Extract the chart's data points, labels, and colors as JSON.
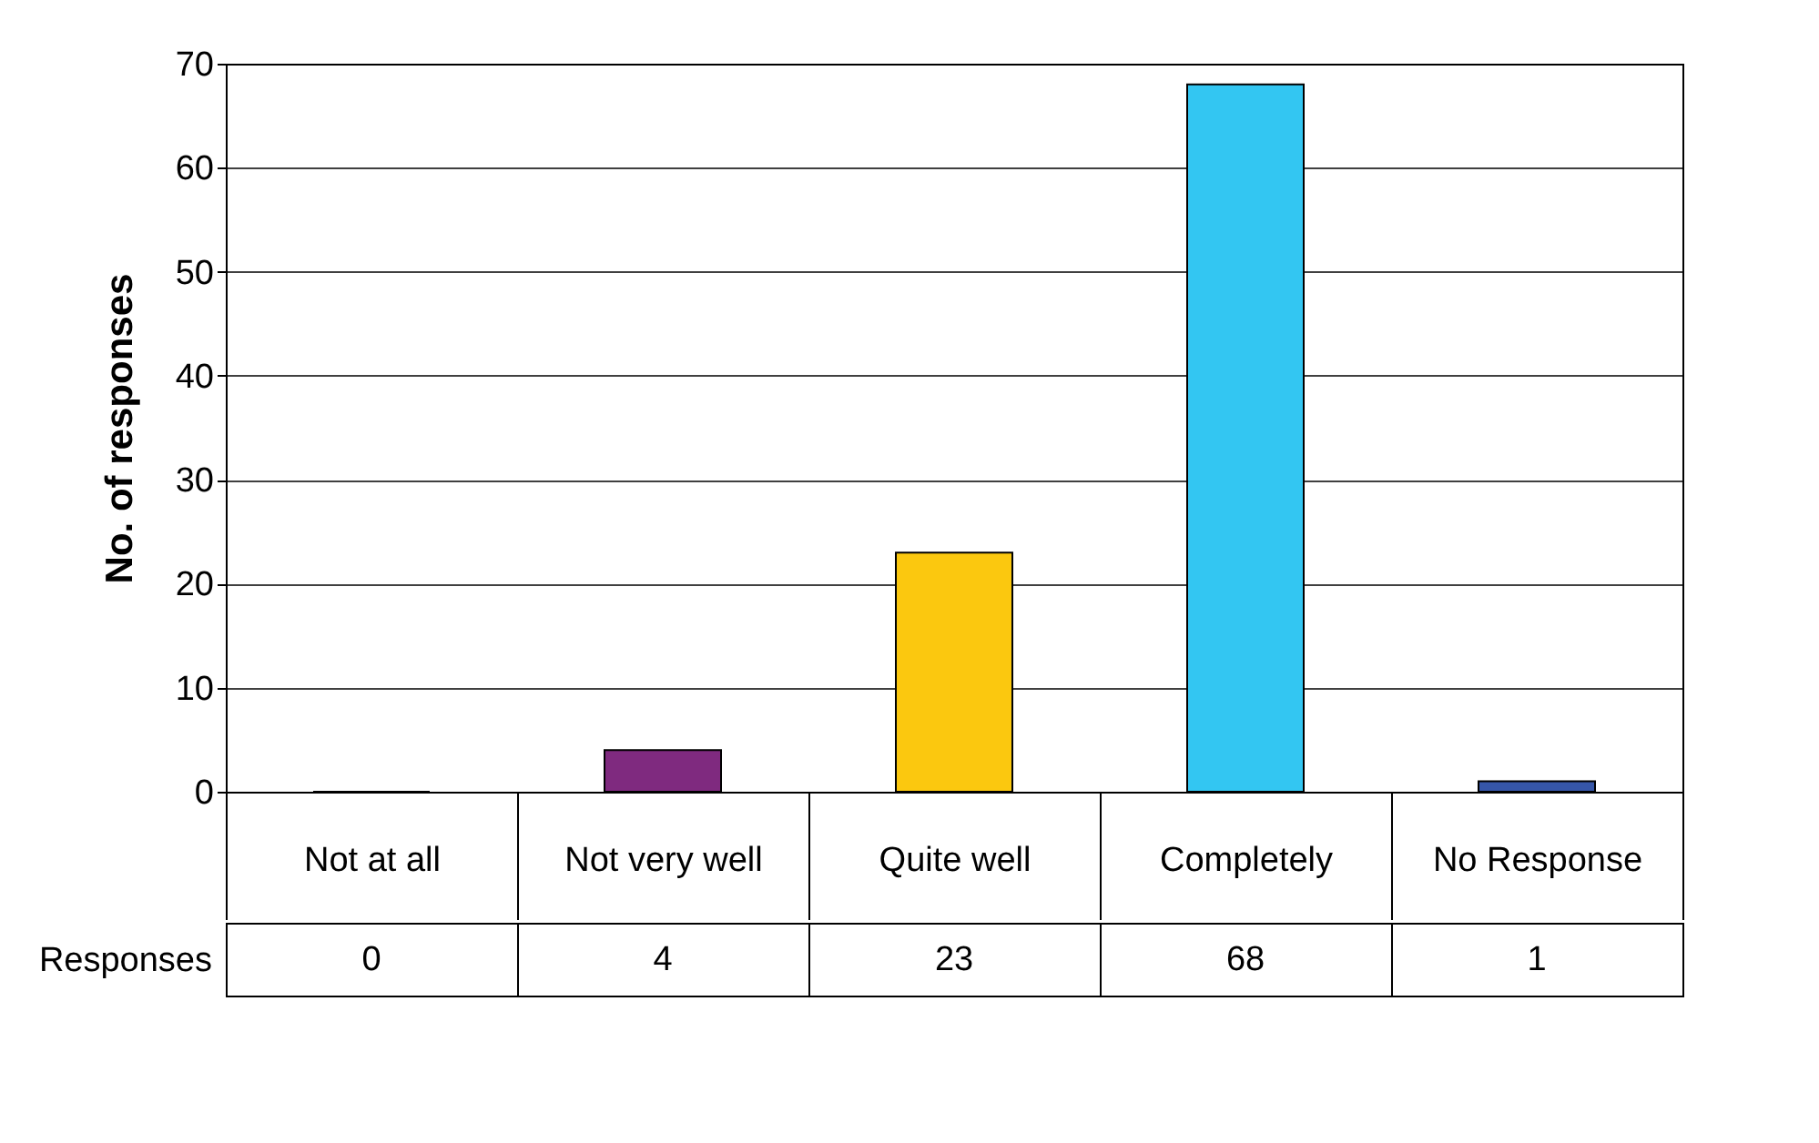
{
  "chart_data": {
    "type": "bar",
    "ylabel": "No. of responses",
    "categories": [
      "Not at all",
      "Not very well",
      "Quite well",
      "Completely",
      "No Response"
    ],
    "series": [
      {
        "name": "Responses",
        "values": [
          0,
          4,
          23,
          68,
          1
        ]
      }
    ],
    "colors": [
      "#7f7f7f",
      "#7f2a7f",
      "#fbc80f",
      "#33c6f2",
      "#3656a8"
    ],
    "ylim": [
      0,
      70
    ],
    "yticks": [
      0,
      10,
      20,
      30,
      40,
      50,
      60,
      70
    ],
    "grid": "y",
    "data_labels": true,
    "legend": false
  }
}
